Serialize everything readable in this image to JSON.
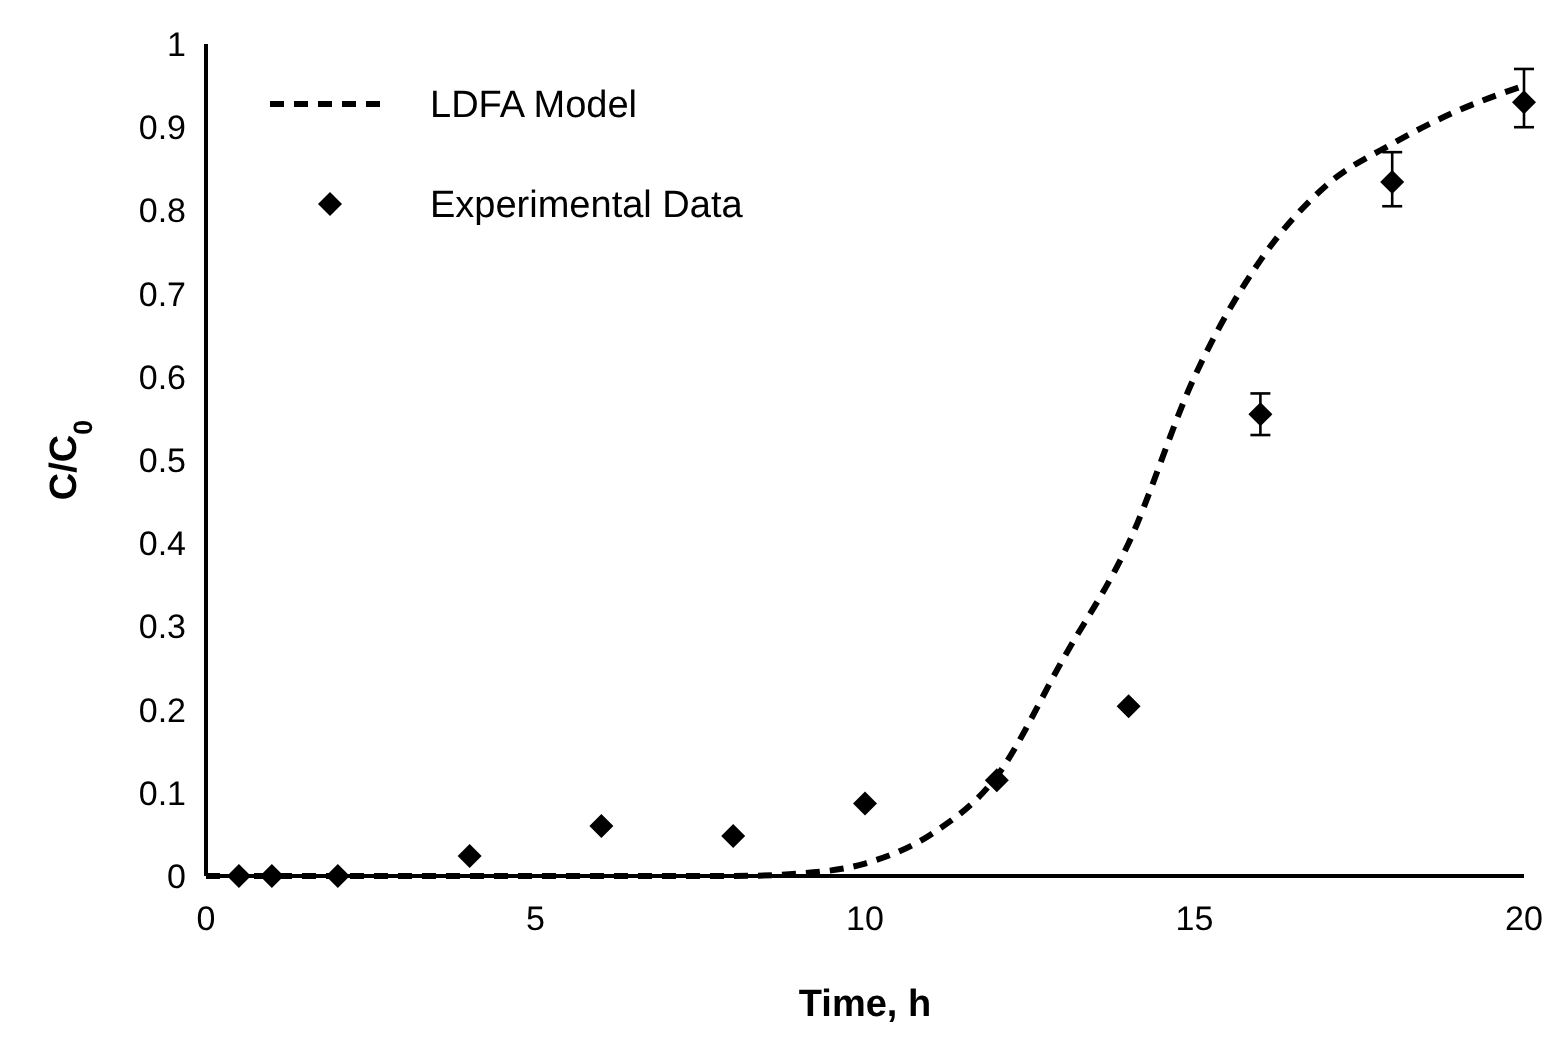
{
  "chart_data": {
    "type": "line",
    "xlabel": "Time, h",
    "ylabel": "C/C$_{0}$",
    "xlim": [
      0,
      20
    ],
    "ylim": [
      0,
      1
    ],
    "xticks": [
      0,
      5,
      10,
      15,
      20
    ],
    "yticks": [
      0,
      0.1,
      0.2,
      0.3,
      0.4,
      0.5,
      0.6,
      0.7,
      0.8,
      0.9,
      1
    ],
    "grid": false,
    "legend": "top left",
    "series": [
      {
        "name": "LDFA Model",
        "line_style": "dashed",
        "marker": "none",
        "color": "#000000",
        "x": [
          0,
          2,
          4,
          6,
          8,
          9,
          10,
          11,
          12,
          13,
          14,
          15,
          16,
          17,
          18,
          19,
          20
        ],
        "values": [
          0,
          0,
          0,
          0,
          0,
          0.003,
          0.015,
          0.05,
          0.12,
          0.26,
          0.4,
          0.6,
          0.74,
          0.83,
          0.88,
          0.92,
          0.95
        ]
      },
      {
        "name": "Experimental Data",
        "type": "scatter",
        "marker": "diamond",
        "color": "#000000",
        "x": [
          0.5,
          1,
          2,
          4,
          6,
          8,
          10,
          12,
          14,
          16,
          18,
          20
        ],
        "values": [
          0,
          0,
          0,
          0.024,
          0.06,
          0.048,
          0.087,
          0.115,
          0.204,
          0.555,
          0.834,
          0.93
        ],
        "errors": [
          null,
          null,
          null,
          null,
          null,
          null,
          null,
          null,
          null,
          [
            0.53,
            0.58
          ],
          [
            0.805,
            0.87
          ],
          [
            0.9,
            0.97
          ]
        ]
      }
    ]
  }
}
